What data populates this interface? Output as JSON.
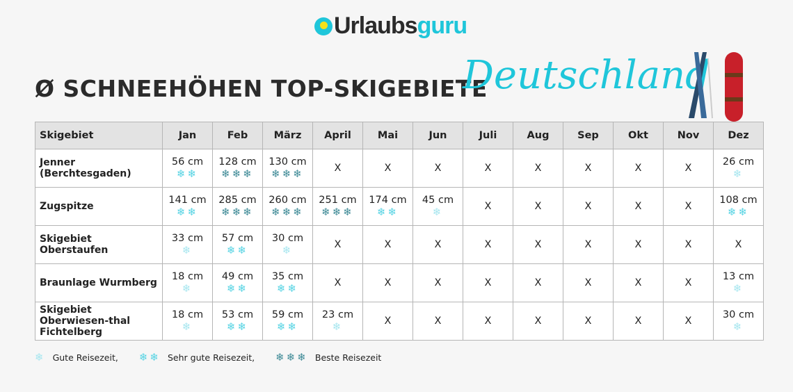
{
  "logo": {
    "part1": "Urlaubs",
    "part2": "guru"
  },
  "title": "Ø SCHNEEHÖHEN TOP-SKIGEBIETE",
  "title_script": "Deutschland",
  "colors": {
    "accent": "#1fc6da",
    "rating1": "#a6e6ef",
    "rating2": "#55d3e3",
    "rating3": "#3e8a96"
  },
  "table": {
    "headers": [
      "Skigebiet",
      "Jan",
      "Feb",
      "März",
      "April",
      "Mai",
      "Jun",
      "Juli",
      "Aug",
      "Sep",
      "Okt",
      "Nov",
      "Dez"
    ],
    "rows": [
      {
        "name": "Jenner (Berchtesgaden)",
        "cells": [
          {
            "v": "56 cm",
            "r": 2
          },
          {
            "v": "128 cm",
            "r": 3
          },
          {
            "v": "130 cm",
            "r": 3
          },
          {
            "v": "X",
            "r": 0
          },
          {
            "v": "X",
            "r": 0
          },
          {
            "v": "X",
            "r": 0
          },
          {
            "v": "X",
            "r": 0
          },
          {
            "v": "X",
            "r": 0
          },
          {
            "v": "X",
            "r": 0
          },
          {
            "v": "X",
            "r": 0
          },
          {
            "v": "X",
            "r": 0
          },
          {
            "v": "26 cm",
            "r": 1
          }
        ]
      },
      {
        "name": "Zugspitze",
        "cells": [
          {
            "v": "141 cm",
            "r": 2
          },
          {
            "v": "285 cm",
            "r": 3
          },
          {
            "v": "260 cm",
            "r": 3
          },
          {
            "v": "251 cm",
            "r": 3
          },
          {
            "v": "174 cm",
            "r": 2
          },
          {
            "v": "45 cm",
            "r": 1
          },
          {
            "v": "X",
            "r": 0
          },
          {
            "v": "X",
            "r": 0
          },
          {
            "v": "X",
            "r": 0
          },
          {
            "v": "X",
            "r": 0
          },
          {
            "v": "X",
            "r": 0
          },
          {
            "v": "108 cm",
            "r": 2
          }
        ]
      },
      {
        "name": "Skigebiet Oberstaufen",
        "cells": [
          {
            "v": "33 cm",
            "r": 1
          },
          {
            "v": "57 cm",
            "r": 2
          },
          {
            "v": "30 cm",
            "r": 1
          },
          {
            "v": "X",
            "r": 0
          },
          {
            "v": "X",
            "r": 0
          },
          {
            "v": "X",
            "r": 0
          },
          {
            "v": "X",
            "r": 0
          },
          {
            "v": "X",
            "r": 0
          },
          {
            "v": "X",
            "r": 0
          },
          {
            "v": "X",
            "r": 0
          },
          {
            "v": "X",
            "r": 0
          },
          {
            "v": "X",
            "r": 0
          }
        ]
      },
      {
        "name": "Braunlage Wurmberg",
        "cells": [
          {
            "v": "18 cm",
            "r": 1
          },
          {
            "v": "49 cm",
            "r": 2
          },
          {
            "v": "35 cm",
            "r": 2
          },
          {
            "v": "X",
            "r": 0
          },
          {
            "v": "X",
            "r": 0
          },
          {
            "v": "X",
            "r": 0
          },
          {
            "v": "X",
            "r": 0
          },
          {
            "v": "X",
            "r": 0
          },
          {
            "v": "X",
            "r": 0
          },
          {
            "v": "X",
            "r": 0
          },
          {
            "v": "X",
            "r": 0
          },
          {
            "v": "13 cm",
            "r": 1
          }
        ]
      },
      {
        "name": "Skigebiet Oberwiesen-thal Fichtelberg",
        "cells": [
          {
            "v": "18 cm",
            "r": 1
          },
          {
            "v": "53 cm",
            "r": 2
          },
          {
            "v": "59 cm",
            "r": 2
          },
          {
            "v": "23 cm",
            "r": 1
          },
          {
            "v": "X",
            "r": 0
          },
          {
            "v": "X",
            "r": 0
          },
          {
            "v": "X",
            "r": 0
          },
          {
            "v": "X",
            "r": 0
          },
          {
            "v": "X",
            "r": 0
          },
          {
            "v": "X",
            "r": 0
          },
          {
            "v": "X",
            "r": 0
          },
          {
            "v": "30 cm",
            "r": 1
          }
        ]
      }
    ]
  },
  "legend": [
    {
      "r": 1,
      "label": "Gute Reisezeit,"
    },
    {
      "r": 2,
      "label": "Sehr gute Reisezeit,"
    },
    {
      "r": 3,
      "label": "Beste Reisezeit"
    }
  ]
}
